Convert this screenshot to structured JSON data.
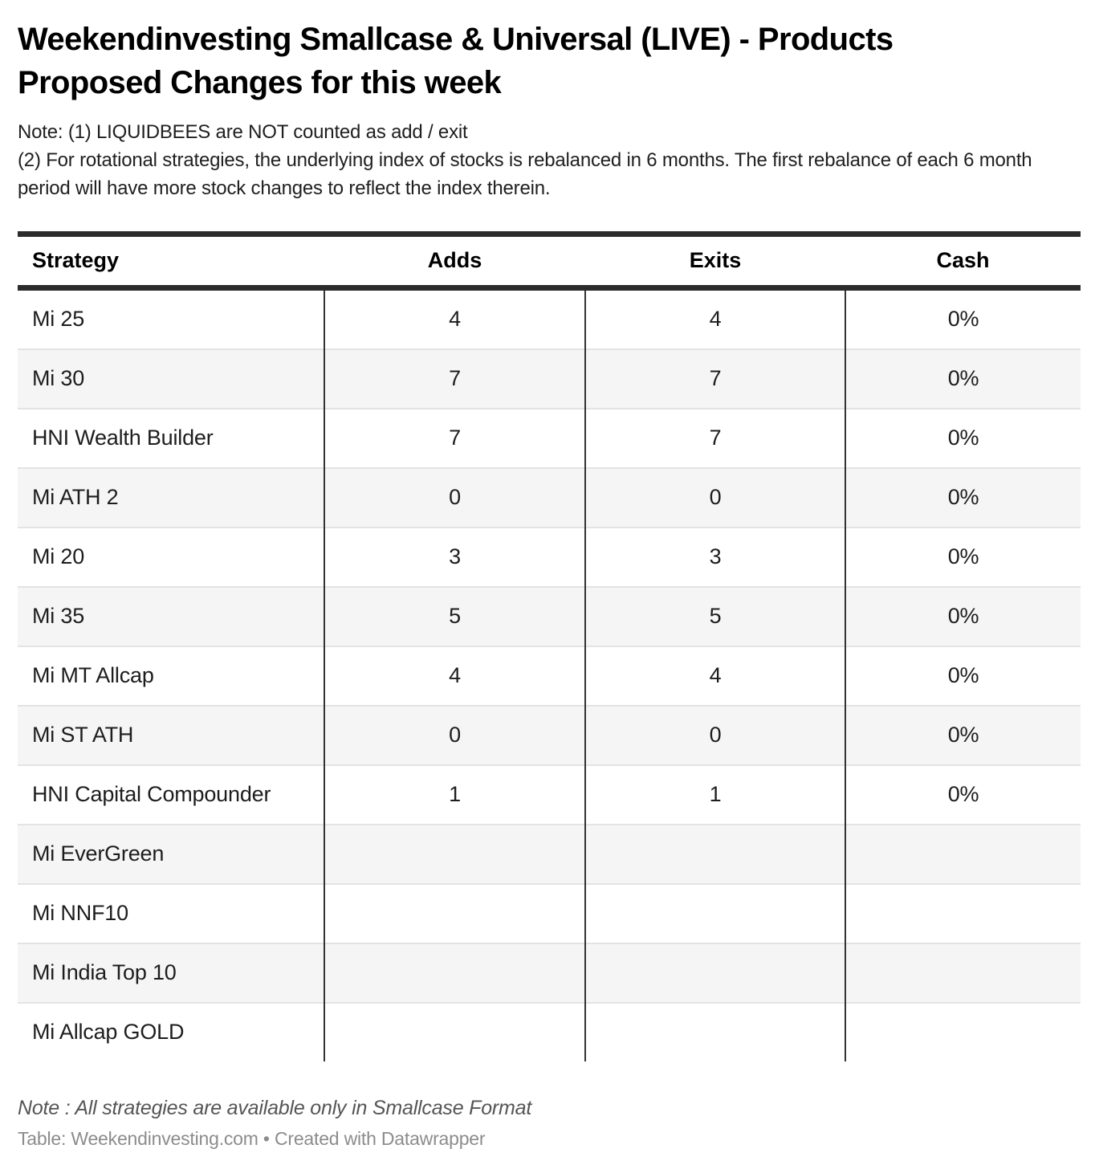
{
  "header": {
    "title": "Weekendinvesting Smallcase & Universal (LIVE) - Products Proposed Changes for this week",
    "notes": [
      "Note: (1) LIQUIDBEES are NOT counted as add / exit",
      "(2) For rotational strategies, the underlying index of stocks is rebalanced in 6 months. The first rebalance of each 6 month period will have more stock changes to reflect the index therein."
    ]
  },
  "table": {
    "columns": [
      "Strategy",
      "Adds",
      "Exits",
      "Cash"
    ],
    "rows": [
      {
        "strategy": "Mi 25",
        "adds": "4",
        "exits": "4",
        "cash": "0%"
      },
      {
        "strategy": "Mi 30",
        "adds": "7",
        "exits": "7",
        "cash": "0%"
      },
      {
        "strategy": "HNI Wealth Builder",
        "adds": "7",
        "exits": "7",
        "cash": "0%"
      },
      {
        "strategy": "Mi ATH 2",
        "adds": "0",
        "exits": "0",
        "cash": "0%"
      },
      {
        "strategy": "Mi 20",
        "adds": "3",
        "exits": "3",
        "cash": "0%"
      },
      {
        "strategy": "Mi 35",
        "adds": "5",
        "exits": "5",
        "cash": "0%"
      },
      {
        "strategy": "Mi MT Allcap",
        "adds": "4",
        "exits": "4",
        "cash": "0%"
      },
      {
        "strategy": "Mi ST ATH",
        "adds": "0",
        "exits": "0",
        "cash": "0%"
      },
      {
        "strategy": "HNI Capital Compounder",
        "adds": "1",
        "exits": "1",
        "cash": "0%"
      },
      {
        "strategy": "Mi EverGreen",
        "adds": "",
        "exits": "",
        "cash": ""
      },
      {
        "strategy": "Mi NNF10",
        "adds": "",
        "exits": "",
        "cash": ""
      },
      {
        "strategy": "Mi India Top 10",
        "adds": "",
        "exits": "",
        "cash": ""
      },
      {
        "strategy": "Mi Allcap GOLD",
        "adds": "",
        "exits": "",
        "cash": ""
      }
    ]
  },
  "footer": {
    "note": "Note : All strategies are available only in Smallcase Format",
    "credit": "Table: Weekendinvesting.com • Created with Datawrapper"
  },
  "colors": {
    "header_rule": "#2b2b2b",
    "column_rule": "#333333",
    "row_separator": "#e3e3e3",
    "row_alt_background": "#f5f5f5",
    "footer_note_text": "#555555",
    "footer_credit_text": "#8c8c8c"
  },
  "chart_data": {
    "type": "table",
    "title": "Weekendinvesting Smallcase & Universal (LIVE) - Products Proposed Changes for this week",
    "columns": [
      "Strategy",
      "Adds",
      "Exits",
      "Cash"
    ],
    "rows": [
      [
        "Mi 25",
        4,
        4,
        "0%"
      ],
      [
        "Mi 30",
        7,
        7,
        "0%"
      ],
      [
        "HNI Wealth Builder",
        7,
        7,
        "0%"
      ],
      [
        "Mi ATH 2",
        0,
        0,
        "0%"
      ],
      [
        "Mi 20",
        3,
        3,
        "0%"
      ],
      [
        "Mi 35",
        5,
        5,
        "0%"
      ],
      [
        "Mi MT Allcap",
        4,
        4,
        "0%"
      ],
      [
        "Mi ST ATH",
        0,
        0,
        "0%"
      ],
      [
        "HNI Capital Compounder",
        1,
        1,
        "0%"
      ],
      [
        "Mi EverGreen",
        null,
        null,
        null
      ],
      [
        "Mi NNF10",
        null,
        null,
        null
      ],
      [
        "Mi India Top 10",
        null,
        null,
        null
      ],
      [
        "Mi Allcap GOLD",
        null,
        null,
        null
      ]
    ],
    "notes": [
      "Note: (1) LIQUIDBEES are NOT counted as add / exit",
      "(2) For rotational strategies, the underlying index of stocks is rebalanced in 6 months. The first rebalance of each 6 month period will have more stock changes to reflect the index therein.",
      "Note : All strategies are available only in Smallcase Format"
    ],
    "source": "Table: Weekendinvesting.com • Created with Datawrapper"
  }
}
